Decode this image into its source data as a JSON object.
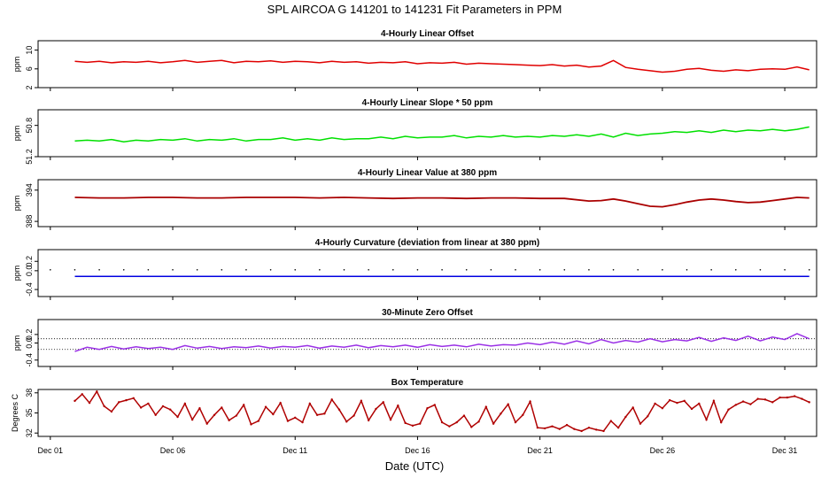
{
  "page_title": "SPL   AIRCOA G   141201 to 141231   Fit Parameters in PPM",
  "x_axis_label": "Date (UTC)",
  "colors": {
    "offset": "#e00000",
    "slope": "#00e000",
    "value": "#aa0000",
    "curvature": "#0000e0",
    "zero": "#9a30e6",
    "temperature": "#b00000",
    "axes": "#000000"
  },
  "chart_data": [
    {
      "type": "line",
      "title": "4-Hourly Linear Offset",
      "ylabel": "ppm",
      "ylim": [
        2,
        12
      ],
      "yticks": [
        "2",
        "6",
        "10"
      ],
      "ytick_values": [
        2,
        6,
        10
      ],
      "x_range_days": [
        0.5,
        32.3
      ],
      "x_ticks": [
        "Dec 01",
        "Dec 06",
        "Dec 11",
        "Dec 16",
        "Dec 21",
        "Dec 26",
        "Dec 31"
      ],
      "x_tick_days": [
        1,
        6,
        11,
        16,
        21,
        26,
        31
      ],
      "series": [
        {
          "color_key": "offset",
          "x": [
            2,
            2.5,
            3,
            3.5,
            4,
            4.5,
            5,
            5.5,
            6,
            6.5,
            7,
            7.5,
            8,
            8.5,
            9,
            9.5,
            10,
            10.5,
            11,
            11.5,
            12,
            12.5,
            13,
            13.5,
            14,
            14.5,
            15,
            15.5,
            16,
            16.5,
            17,
            17.5,
            18,
            18.5,
            19,
            19.5,
            20,
            20.5,
            21,
            21.5,
            22,
            22.5,
            23,
            23.5,
            24,
            24.5,
            25,
            25.5,
            26,
            26.5,
            27,
            27.5,
            28,
            28.5,
            29,
            29.5,
            30,
            30.5,
            31,
            31.5,
            32
          ],
          "y": [
            7.6,
            7.4,
            7.6,
            7.3,
            7.5,
            7.4,
            7.6,
            7.3,
            7.5,
            7.8,
            7.4,
            7.6,
            7.8,
            7.3,
            7.6,
            7.5,
            7.7,
            7.4,
            7.6,
            7.5,
            7.3,
            7.6,
            7.4,
            7.5,
            7.2,
            7.4,
            7.3,
            7.5,
            7.1,
            7.3,
            7.2,
            7.4,
            7.0,
            7.2,
            7.1,
            7.0,
            6.9,
            6.8,
            6.7,
            6.9,
            6.6,
            6.8,
            6.4,
            6.6,
            7.8,
            6.3,
            5.9,
            5.6,
            5.3,
            5.5,
            5.9,
            6.1,
            5.7,
            5.5,
            5.8,
            5.6,
            5.9,
            6.0,
            5.9,
            6.4,
            5.8
          ]
        }
      ]
    },
    {
      "type": "line",
      "title": "4-Hourly Linear Slope * 50 ppm",
      "ylabel": "ppm",
      "ylim": [
        51.2,
        50.6
      ],
      "yticks": [
        "50.8",
        "51.2"
      ],
      "ytick_values": [
        50.8,
        51.2
      ],
      "x_range_days": [
        0.5,
        32.3
      ],
      "series": [
        {
          "color_key": "slope",
          "x": [
            2,
            2.5,
            3,
            3.5,
            4,
            4.5,
            5,
            5.5,
            6,
            6.5,
            7,
            7.5,
            8,
            8.5,
            9,
            9.5,
            10,
            10.5,
            11,
            11.5,
            12,
            12.5,
            13,
            13.5,
            14,
            14.5,
            15,
            15.5,
            16,
            16.5,
            17,
            17.5,
            18,
            18.5,
            19,
            19.5,
            20,
            20.5,
            21,
            21.5,
            22,
            22.5,
            23,
            23.5,
            24,
            24.5,
            25,
            25.5,
            26,
            26.5,
            27,
            27.5,
            28,
            28.5,
            29,
            29.5,
            30,
            30.5,
            31,
            31.5,
            32
          ],
          "y": [
            51.0,
            50.99,
            51.0,
            50.98,
            51.01,
            50.99,
            51.0,
            50.98,
            50.99,
            50.97,
            51.0,
            50.98,
            50.99,
            50.97,
            51.0,
            50.98,
            50.98,
            50.96,
            50.99,
            50.97,
            50.99,
            50.96,
            50.98,
            50.97,
            50.97,
            50.95,
            50.97,
            50.94,
            50.96,
            50.95,
            50.95,
            50.93,
            50.96,
            50.94,
            50.95,
            50.93,
            50.95,
            50.94,
            50.95,
            50.93,
            50.94,
            50.92,
            50.94,
            50.91,
            50.95,
            50.9,
            50.93,
            50.91,
            50.9,
            50.88,
            50.89,
            50.87,
            50.89,
            50.86,
            50.88,
            50.86,
            50.87,
            50.85,
            50.87,
            50.85,
            50.82
          ]
        }
      ]
    },
    {
      "type": "line",
      "title": "4-Hourly Linear Value at 380 ppm",
      "ylabel": "ppm",
      "ylim": [
        387,
        396
      ],
      "yticks": [
        "388",
        "394"
      ],
      "ytick_values": [
        388,
        394
      ],
      "x_range_days": [
        0.5,
        32.3
      ],
      "series": [
        {
          "color_key": "value",
          "x": [
            2,
            3,
            4,
            5,
            6,
            7,
            8,
            9,
            10,
            11,
            12,
            13,
            14,
            15,
            16,
            17,
            18,
            19,
            20,
            21,
            22,
            23,
            23.5,
            24,
            24.5,
            25,
            25.5,
            26,
            26.5,
            27,
            27.5,
            28,
            28.5,
            29,
            29.5,
            30,
            30.5,
            31,
            31.5,
            32
          ],
          "y": [
            392.6,
            392.5,
            392.5,
            392.6,
            392.6,
            392.5,
            392.5,
            392.6,
            392.6,
            392.6,
            392.5,
            392.6,
            392.5,
            392.4,
            392.5,
            392.5,
            392.4,
            392.5,
            392.5,
            392.4,
            392.4,
            391.9,
            392.0,
            392.3,
            391.9,
            391.4,
            390.9,
            390.8,
            391.2,
            391.7,
            392.1,
            392.3,
            392.1,
            391.8,
            391.6,
            391.7,
            392.0,
            392.3,
            392.6,
            392.5
          ]
        }
      ]
    },
    {
      "type": "line",
      "title": "4-Hourly Curvature (deviation from linear at 380 ppm)",
      "ylabel": "ppm",
      "ylim": [
        -0.55,
        0.45
      ],
      "yticks": [
        "-0.4",
        "0.0",
        "0.2"
      ],
      "ytick_values": [
        -0.4,
        0.0,
        0.2
      ],
      "x_range_days": [
        0.5,
        32.3
      ],
      "series": [
        {
          "color_key": "curvature",
          "x": [
            2,
            32
          ],
          "y": [
            -0.12,
            -0.12
          ]
        },
        {
          "color_key": "axes",
          "style": "dots",
          "x": [
            1,
            2,
            3,
            4,
            5,
            6,
            7,
            8,
            9,
            10,
            11,
            12,
            13,
            14,
            15,
            16,
            17,
            18,
            19,
            20,
            21,
            22,
            23,
            24,
            25,
            26,
            27,
            28,
            29,
            30,
            31,
            32
          ],
          "y": [
            0.02,
            0.02,
            0.02,
            0.02,
            0.02,
            0.02,
            0.02,
            0.02,
            0.02,
            0.02,
            0.02,
            0.02,
            0.02,
            0.02,
            0.02,
            0.02,
            0.02,
            0.02,
            0.02,
            0.02,
            0.02,
            0.02,
            0.02,
            0.02,
            0.02,
            0.02,
            0.02,
            0.02,
            0.02,
            0.02,
            0.02,
            0.02
          ]
        }
      ]
    },
    {
      "type": "line",
      "title": "30-Minute Zero Offset",
      "ylabel": "ppm",
      "ylim": [
        -0.55,
        0.55
      ],
      "yticks": [
        "-0.4",
        "0.0",
        "0.2"
      ],
      "ytick_values": [
        -0.4,
        0.0,
        0.2
      ],
      "reference_lines": [
        0.1,
        -0.15
      ],
      "x_range_days": [
        0.5,
        32.3
      ],
      "series": [
        {
          "color_key": "zero",
          "x": [
            2,
            2.5,
            3,
            3.5,
            4,
            4.5,
            5,
            5.5,
            6,
            6.5,
            7,
            7.5,
            8,
            8.5,
            9,
            9.5,
            10,
            10.5,
            11,
            11.5,
            12,
            12.5,
            13,
            13.5,
            14,
            14.5,
            15,
            15.5,
            16,
            16.5,
            17,
            17.5,
            18,
            18.5,
            19,
            19.5,
            20,
            20.5,
            21,
            21.5,
            22,
            22.5,
            23,
            23.5,
            24,
            24.5,
            25,
            25.5,
            26,
            26.5,
            27,
            27.5,
            28,
            28.5,
            29,
            29.5,
            30,
            30.5,
            31,
            31.5,
            32
          ],
          "y": [
            -0.2,
            -0.1,
            -0.15,
            -0.08,
            -0.14,
            -0.09,
            -0.13,
            -0.1,
            -0.15,
            -0.06,
            -0.12,
            -0.08,
            -0.13,
            -0.09,
            -0.11,
            -0.07,
            -0.12,
            -0.08,
            -0.1,
            -0.06,
            -0.12,
            -0.07,
            -0.1,
            -0.05,
            -0.11,
            -0.06,
            -0.09,
            -0.05,
            -0.1,
            -0.04,
            -0.08,
            -0.05,
            -0.09,
            -0.03,
            -0.07,
            -0.04,
            -0.05,
            0.0,
            -0.04,
            0.02,
            -0.03,
            0.05,
            -0.02,
            0.08,
            0.0,
            0.06,
            0.02,
            0.1,
            0.03,
            0.08,
            0.05,
            0.13,
            0.04,
            0.12,
            0.06,
            0.16,
            0.05,
            0.14,
            0.08,
            0.22,
            0.1
          ]
        }
      ]
    },
    {
      "type": "line",
      "title": "Box Temperature",
      "ylabel": "Degrees C",
      "ylim": [
        31.5,
        38.5
      ],
      "yticks": [
        "32",
        "35",
        "38"
      ],
      "ytick_values": [
        32,
        35,
        38
      ],
      "x_range_days": [
        0.5,
        32.3
      ],
      "series": [
        {
          "color_key": "temperature",
          "x": [
            2,
            2.3,
            2.6,
            2.9,
            3.2,
            3.5,
            3.8,
            4.1,
            4.4,
            4.7,
            5,
            5.3,
            5.6,
            5.9,
            6.2,
            6.5,
            6.8,
            7.1,
            7.4,
            7.7,
            8,
            8.3,
            8.6,
            8.9,
            9.2,
            9.5,
            9.8,
            10.1,
            10.4,
            10.7,
            11,
            11.3,
            11.6,
            11.9,
            12.2,
            12.5,
            12.8,
            13.1,
            13.4,
            13.7,
            14,
            14.3,
            14.6,
            14.9,
            15.2,
            15.5,
            15.8,
            16.1,
            16.4,
            16.7,
            17,
            17.3,
            17.6,
            17.9,
            18.2,
            18.5,
            18.8,
            19.1,
            19.4,
            19.7,
            20,
            20.3,
            20.6,
            20.9,
            21.2,
            21.5,
            21.8,
            22.1,
            22.4,
            22.7,
            23,
            23.3,
            23.6,
            23.9,
            24.2,
            24.5,
            24.8,
            25.1,
            25.4,
            25.7,
            26,
            26.3,
            26.6,
            26.9,
            27.2,
            27.5,
            27.8,
            28.1,
            28.4,
            28.7,
            29,
            29.3,
            29.6,
            29.9,
            30.2,
            30.5,
            30.8,
            31.1,
            31.4,
            31.7,
            32
          ],
          "y": [
            36.8,
            37.8,
            36.5,
            38.2,
            36.0,
            35.2,
            36.6,
            36.9,
            37.2,
            35.8,
            36.4,
            34.7,
            36.0,
            35.5,
            34.4,
            36.4,
            34.0,
            35.7,
            33.4,
            34.7,
            35.8,
            33.9,
            34.6,
            36.2,
            33.3,
            33.8,
            35.9,
            34.8,
            36.5,
            33.8,
            34.3,
            33.6,
            36.4,
            34.7,
            34.9,
            37.0,
            35.5,
            33.7,
            34.6,
            36.8,
            33.9,
            35.6,
            36.6,
            34.0,
            36.1,
            33.5,
            33.1,
            33.4,
            35.7,
            36.2,
            33.6,
            33.0,
            33.6,
            34.6,
            32.9,
            33.7,
            35.9,
            33.4,
            34.9,
            36.3,
            33.6,
            34.7,
            36.7,
            32.8,
            32.7,
            33.0,
            32.6,
            33.2,
            32.6,
            32.3,
            32.8,
            32.5,
            32.3,
            33.8,
            32.8,
            34.4,
            35.8,
            33.4,
            34.5,
            36.4,
            35.7,
            36.9,
            36.5,
            36.8,
            35.6,
            36.4,
            34.0,
            36.8,
            33.6,
            35.5,
            36.2,
            36.7,
            36.3,
            37.1,
            37.0,
            36.6,
            37.3,
            37.3,
            37.5,
            37.1,
            36.6
          ]
        }
      ]
    }
  ]
}
